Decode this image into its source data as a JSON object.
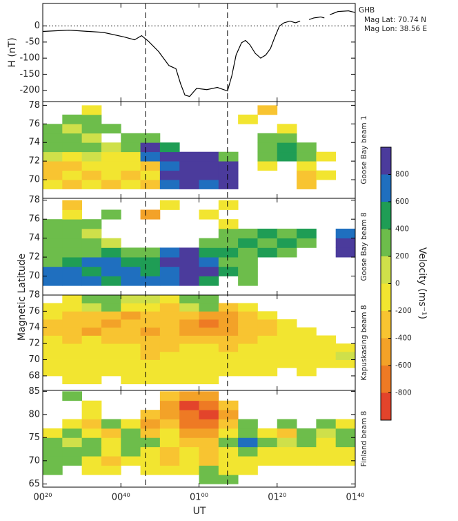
{
  "chart_data": [
    {
      "type": "line",
      "ylabel": "H (nT)",
      "station": "GHB",
      "annotations": [
        "Mag Lat: 70.74 N",
        "Mag Lon: 38.56 E"
      ],
      "x": [
        20,
        26.7,
        35.5,
        40.8,
        43.5,
        45.3,
        47.0,
        49.7,
        52.3,
        54.1,
        55.3,
        56.4,
        57.6,
        59.4,
        62.0,
        64.7,
        67.3,
        68.4,
        69.5,
        70.9,
        71.9,
        73.0,
        74.4,
        75.8,
        77.1,
        78.3,
        79.4,
        80.6,
        81.8,
        83.3,
        84.7,
        85.9,
        87,
        88.2,
        89.4,
        91.2,
        92.1,
        93,
        93.5,
        95.6,
        98.3,
        100
      ],
      "values": [
        -17,
        -13,
        -20,
        -34,
        -43,
        -30,
        -47,
        -80,
        -123,
        -133,
        -180,
        -215,
        -219,
        -194,
        -198,
        -191,
        -202,
        -155,
        -90,
        -52,
        -45,
        -58,
        -85,
        -100,
        -90,
        -70,
        -35,
        0,
        10,
        15,
        10,
        15,
        null,
        20,
        25,
        28,
        25,
        null,
        35,
        45,
        47,
        42
      ],
      "color": "#000000",
      "ylim": [
        -235,
        70
      ],
      "yticks": [
        -200,
        -150,
        -100,
        -50,
        0
      ],
      "reference_line": 0
    },
    {
      "type": "heatmap",
      "label": "Goose Bay beam 1",
      "ylim": [
        68,
        78.4
      ],
      "yticks": [
        70,
        72,
        74,
        76,
        78
      ],
      "xbins": [
        20,
        25,
        30,
        35,
        40,
        45,
        50,
        55,
        60,
        65,
        70,
        75,
        80,
        85,
        90,
        95,
        100
      ],
      "ybins": [
        69,
        70,
        71,
        72,
        73,
        74,
        75,
        76,
        77,
        78
      ],
      "values": [
        [
          -100,
          -300,
          -100,
          -300,
          -100,
          -300,
          700,
          900,
          700,
          900,
          null,
          null,
          null,
          -300,
          null,
          null
        ],
        [
          -300,
          -100,
          -300,
          -100,
          -300,
          -100,
          900,
          900,
          900,
          900,
          null,
          null,
          null,
          -300,
          -100,
          null
        ],
        [
          -300,
          -300,
          -100,
          -100,
          -100,
          -300,
          700,
          900,
          900,
          900,
          null,
          -100,
          null,
          -100,
          null,
          null
        ],
        [
          100,
          -100,
          100,
          -100,
          -100,
          700,
          900,
          900,
          900,
          300,
          null,
          300,
          500,
          300,
          -100,
          null
        ],
        [
          300,
          300,
          300,
          100,
          300,
          900,
          500,
          null,
          null,
          null,
          null,
          300,
          500,
          300,
          null,
          null
        ],
        [
          300,
          300,
          100,
          null,
          300,
          300,
          null,
          null,
          null,
          null,
          null,
          300,
          300,
          null,
          null,
          null
        ],
        [
          300,
          100,
          300,
          300,
          null,
          null,
          null,
          null,
          null,
          null,
          null,
          null,
          -100,
          null,
          null,
          null
        ],
        [
          null,
          300,
          300,
          null,
          null,
          null,
          null,
          null,
          null,
          null,
          -100,
          null,
          null,
          null,
          null,
          null
        ],
        [
          null,
          null,
          -100,
          null,
          null,
          null,
          null,
          null,
          null,
          null,
          null,
          -300,
          null,
          null,
          null,
          null
        ]
      ]
    },
    {
      "type": "heatmap",
      "label": "Goose Bay beam 8",
      "ylim": [
        68,
        78.2
      ],
      "yticks": [
        70,
        72,
        74,
        76,
        78
      ],
      "xbins": [
        20,
        25,
        30,
        35,
        40,
        45,
        50,
        55,
        60,
        65,
        70,
        75,
        80,
        85,
        90,
        95,
        100
      ],
      "ybins": [
        69,
        70,
        71,
        72,
        73,
        74,
        75,
        76,
        77,
        78
      ],
      "values": [
        [
          700,
          700,
          700,
          500,
          700,
          700,
          700,
          900,
          500,
          null,
          300,
          null,
          null,
          null,
          null,
          null
        ],
        [
          700,
          700,
          500,
          700,
          700,
          500,
          700,
          900,
          900,
          500,
          300,
          null,
          null,
          null,
          null,
          null
        ],
        [
          300,
          500,
          700,
          700,
          500,
          500,
          900,
          900,
          700,
          300,
          300,
          null,
          null,
          null,
          null,
          null
        ],
        [
          300,
          300,
          300,
          500,
          300,
          300,
          700,
          900,
          500,
          500,
          300,
          500,
          300,
          null,
          null,
          900
        ],
        [
          300,
          300,
          300,
          100,
          null,
          null,
          null,
          null,
          300,
          300,
          500,
          300,
          500,
          300,
          null,
          900
        ],
        [
          300,
          300,
          100,
          null,
          null,
          null,
          null,
          null,
          null,
          300,
          300,
          500,
          300,
          500,
          null,
          700
        ],
        [
          300,
          300,
          300,
          null,
          null,
          null,
          null,
          null,
          null,
          -100,
          null,
          null,
          null,
          null,
          null,
          null
        ],
        [
          null,
          -100,
          null,
          300,
          null,
          -500,
          null,
          null,
          -100,
          null,
          null,
          null,
          null,
          null,
          null,
          null
        ],
        [
          null,
          -300,
          null,
          null,
          null,
          null,
          -100,
          null,
          null,
          -100,
          null,
          null,
          null,
          null,
          null,
          null
        ]
      ]
    },
    {
      "type": "heatmap",
      "label": "Kapuskasing beam 8",
      "ylim": [
        66.2,
        78
      ],
      "yticks": [
        68,
        70,
        72,
        74,
        76,
        78
      ],
      "xbins": [
        20,
        25,
        30,
        35,
        40,
        45,
        50,
        55,
        60,
        65,
        70,
        75,
        80,
        85,
        90,
        95,
        100
      ],
      "ybins": [
        67,
        68,
        69,
        70,
        71,
        72,
        73,
        74,
        75,
        76,
        77,
        78
      ],
      "values": [
        [
          null,
          -100,
          -100,
          null,
          -100,
          -100,
          -100,
          -100,
          -100,
          null,
          null,
          null,
          null,
          null,
          null,
          null
        ],
        [
          -100,
          -100,
          -100,
          -100,
          -100,
          -100,
          -100,
          -100,
          -100,
          -100,
          -100,
          -100,
          null,
          -100,
          null,
          null
        ],
        [
          -100,
          -100,
          -100,
          -100,
          -100,
          -100,
          -100,
          -100,
          -100,
          -100,
          -100,
          -100,
          -100,
          -100,
          -100,
          -100
        ],
        [
          -100,
          -100,
          -100,
          -100,
          -100,
          -300,
          -100,
          -100,
          -100,
          -100,
          -100,
          -100,
          -100,
          -100,
          -100,
          100
        ],
        [
          -100,
          -100,
          -100,
          -100,
          -100,
          -300,
          -300,
          -100,
          -100,
          -300,
          -100,
          -100,
          -100,
          -100,
          -100,
          -100
        ],
        [
          -100,
          -300,
          -100,
          -300,
          -300,
          -300,
          -300,
          -300,
          -300,
          -300,
          -300,
          -100,
          -100,
          -100,
          -100,
          null
        ],
        [
          -300,
          -300,
          -500,
          -300,
          -300,
          -500,
          -300,
          -500,
          -500,
          -500,
          -300,
          -300,
          -100,
          -100,
          null,
          null
        ],
        [
          -300,
          -300,
          -300,
          -500,
          -300,
          -300,
          -300,
          -500,
          -700,
          -500,
          -300,
          -300,
          -100,
          null,
          null,
          null
        ],
        [
          -100,
          -300,
          -300,
          -300,
          -500,
          -300,
          -300,
          -300,
          -500,
          -500,
          -300,
          -100,
          null,
          null,
          null,
          null
        ],
        [
          -100,
          -100,
          100,
          300,
          -100,
          -100,
          -300,
          100,
          300,
          -300,
          -100,
          null,
          null,
          null,
          null,
          null
        ],
        [
          null,
          -100,
          300,
          300,
          100,
          100,
          -100,
          300,
          300,
          null,
          null,
          null,
          null,
          null,
          null,
          null
        ]
      ]
    },
    {
      "type": "heatmap",
      "label": "Finland beam 8",
      "ylim": [
        64.3,
        85.2
      ],
      "yticks": [
        65,
        70,
        75,
        80,
        85
      ],
      "xlabel": "UT",
      "xlim": [
        20,
        100
      ],
      "xticks": [
        {
          "value": 20,
          "label": "00²⁰"
        },
        {
          "value": 40,
          "label": "00⁴⁰"
        },
        {
          "value": 60,
          "label": "01⁰⁰"
        },
        {
          "value": 80,
          "label": "01²⁰"
        },
        {
          "value": 100,
          "label": "01⁴⁰"
        }
      ],
      "xbins": [
        20,
        25,
        30,
        35,
        40,
        45,
        50,
        55,
        60,
        65,
        70,
        75,
        80,
        85,
        90,
        95,
        100
      ],
      "ybins": [
        65,
        67,
        69,
        71,
        73,
        75,
        77,
        79,
        81,
        83,
        85
      ],
      "values": [
        [
          null,
          null,
          null,
          null,
          null,
          null,
          null,
          null,
          300,
          300,
          null,
          null,
          null,
          null,
          null,
          null
        ],
        [
          300,
          null,
          -100,
          -100,
          null,
          -100,
          -100,
          -100,
          300,
          -100,
          -100,
          null,
          null,
          null,
          null,
          null
        ],
        [
          300,
          300,
          -100,
          -300,
          -100,
          -100,
          -300,
          -100,
          -300,
          -100,
          -100,
          -100,
          -100,
          -100,
          -100,
          -100
        ],
        [
          300,
          300,
          300,
          -100,
          300,
          -100,
          -300,
          -100,
          -300,
          -100,
          300,
          -100,
          -100,
          -100,
          -100,
          -100
        ],
        [
          300,
          100,
          300,
          -100,
          300,
          300,
          -100,
          -300,
          -300,
          300,
          700,
          300,
          100,
          300,
          -100,
          300
        ],
        [
          -100,
          300,
          -100,
          -300,
          300,
          -300,
          -100,
          -500,
          -500,
          -100,
          300,
          -100,
          -300,
          300,
          100,
          300
        ],
        [
          null,
          -100,
          -300,
          300,
          -100,
          -500,
          -300,
          -700,
          -700,
          -300,
          300,
          null,
          300,
          null,
          300,
          -100
        ],
        [
          null,
          null,
          -100,
          null,
          null,
          -300,
          -500,
          -700,
          -900,
          -500,
          null,
          null,
          null,
          null,
          null,
          null
        ],
        [
          null,
          null,
          -100,
          null,
          null,
          null,
          -500,
          -900,
          -700,
          -300,
          null,
          null,
          null,
          null,
          null,
          null
        ],
        [
          null,
          300,
          null,
          null,
          null,
          null,
          -300,
          -500,
          -500,
          null,
          null,
          null,
          null,
          null,
          null,
          null
        ]
      ]
    }
  ],
  "ylabel": "Magnetic Latitude",
  "vlines": [
    46.3,
    67.3
  ],
  "colorbar": {
    "label": "Velocity (ms⁻¹)",
    "bounds": [
      -1000,
      -800,
      -600,
      -400,
      -200,
      0,
      200,
      400,
      600,
      800,
      1000
    ],
    "colors": [
      "#e3442b",
      "#ee7a24",
      "#f3a228",
      "#f8c431",
      "#f2e530",
      "#cfe04a",
      "#6dbd4b",
      "#1f9d55",
      "#1f6fbf",
      "#4b3b9c"
    ],
    "ticks": [
      -800,
      -600,
      -400,
      -200,
      0,
      200,
      400,
      600,
      800
    ]
  }
}
